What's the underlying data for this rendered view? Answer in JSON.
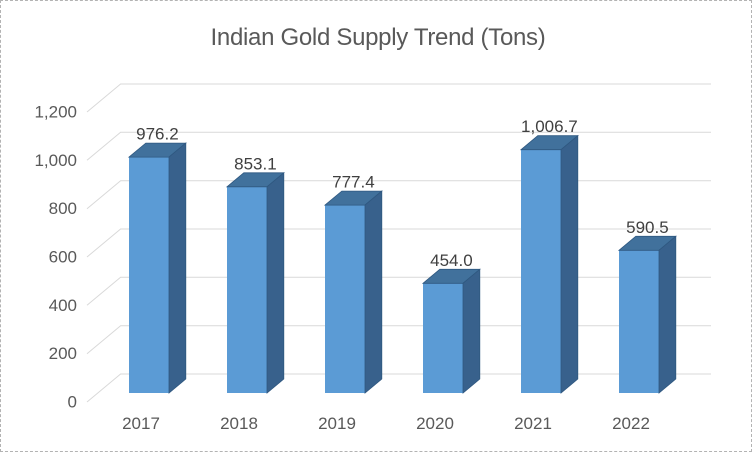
{
  "chart_data": {
    "type": "bar",
    "style": "3d-column",
    "title": "Indian Gold Supply Trend (Tons)",
    "categories": [
      "2017",
      "2018",
      "2019",
      "2020",
      "2021",
      "2022"
    ],
    "values": [
      976.2,
      853.1,
      777.4,
      454.0,
      1006.7,
      590.5
    ],
    "value_labels": [
      "976.2",
      "853.1",
      "777.4",
      "454.0",
      "1,006.7",
      "590.5"
    ],
    "xlabel": "",
    "ylabel": "",
    "ylim": [
      0,
      1200
    ],
    "y_tick_step": 200,
    "y_ticks": [
      {
        "value": 0,
        "label": "0"
      },
      {
        "value": 200,
        "label": "200"
      },
      {
        "value": 400,
        "label": "400"
      },
      {
        "value": 600,
        "label": "600"
      },
      {
        "value": 800,
        "label": "800"
      },
      {
        "value": 1000,
        "label": "1,000"
      },
      {
        "value": 1200,
        "label": "1,200"
      }
    ],
    "grid": true,
    "legend": "none",
    "colors": {
      "bar_front": "#5B9BD5",
      "bar_top": "#41719C",
      "bar_side": "#38618C",
      "bar_edge": "#2F5880",
      "gridline": "#D9D9D9",
      "axis_text": "#595959",
      "title_text": "#595959",
      "data_label_text": "#404040",
      "background": "#FFFFFF",
      "frame_border": "#B3B3B3"
    }
  }
}
